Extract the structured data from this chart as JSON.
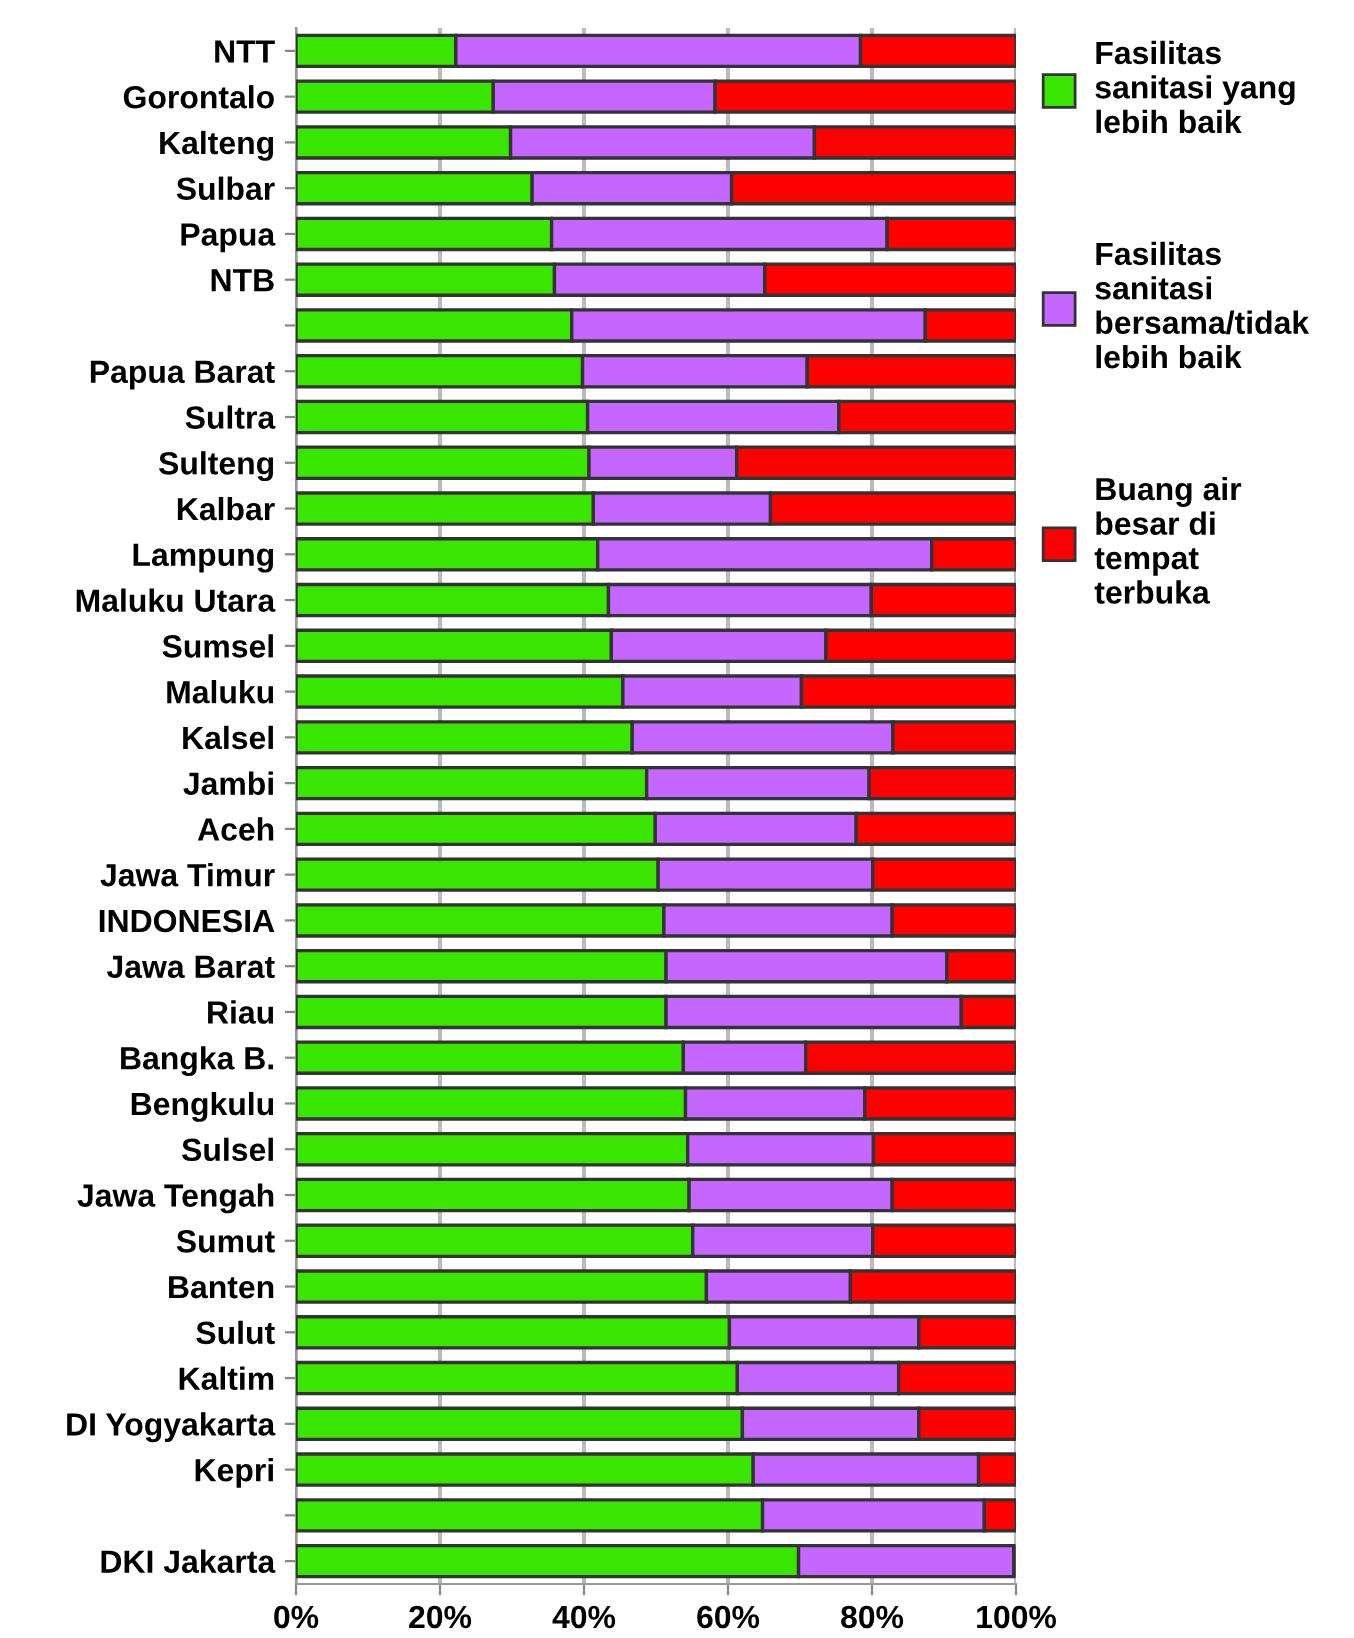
{
  "chart_data": {
    "type": "bar",
    "orientation": "horizontal",
    "stacked": true,
    "categories": [
      "NTT",
      "Gorontalo",
      "Kalteng",
      "Sulbar",
      "Papua",
      "NTB",
      null,
      "Papua Barat",
      "Sultra",
      "Sulteng",
      "Kalbar",
      "Lampung",
      "Maluku Utara",
      "Sumsel",
      "Maluku",
      "Kalsel",
      "Jambi",
      "Aceh",
      "Jawa Timur",
      "INDONESIA",
      "Jawa Barat",
      "Riau",
      "Bangka B.",
      "Bengkulu",
      "Sulsel",
      "Jawa Tengah",
      "Sumut",
      "Banten",
      "Sulut",
      "Kaltim",
      "DI Yogyakarta",
      "Kepri",
      null,
      "DKI Jakarta"
    ],
    "series": [
      {
        "name": "Fasilitas\nsanitasi yang\nlebih baik",
        "color": "#39e600",
        "values": [
          22.2,
          27.4,
          29.8,
          32.8,
          35.5,
          35.9,
          38.3,
          39.8,
          40.5,
          40.7,
          41.3,
          41.9,
          43.4,
          43.8,
          45.4,
          46.7,
          48.7,
          49.9,
          50.3,
          51.1,
          51.4,
          51.4,
          53.8,
          54.1,
          54.4,
          54.6,
          55.1,
          57.0,
          60.2,
          61.3,
          62.0,
          63.5,
          64.8,
          69.8
        ]
      },
      {
        "name": "Fasilitas\nsanitasi\nbersama/tidak\nlebih baik",
        "color": "#c466ff",
        "values": [
          56.2,
          30.8,
          42.2,
          27.7,
          46.6,
          29.2,
          49.1,
          31.2,
          34.9,
          20.5,
          24.6,
          46.4,
          36.5,
          29.8,
          24.8,
          36.2,
          30.9,
          27.9,
          29.8,
          31.7,
          39.0,
          41.0,
          17.0,
          24.9,
          25.8,
          28.2,
          25.0,
          20.0,
          26.3,
          22.4,
          24.5,
          31.3,
          30.8,
          29.9
        ]
      },
      {
        "name": "Buang air\nbesar di\ntempat\nterbuka",
        "color": "#ff0000",
        "values": [
          21.6,
          41.8,
          28.0,
          39.5,
          17.9,
          34.9,
          12.6,
          29.0,
          24.6,
          38.8,
          34.1,
          11.7,
          20.1,
          26.4,
          29.8,
          17.1,
          20.4,
          22.2,
          19.9,
          17.2,
          9.6,
          7.6,
          29.2,
          21.0,
          19.8,
          17.2,
          19.9,
          23.0,
          13.5,
          16.3,
          13.5,
          5.2,
          4.4,
          null
        ]
      }
    ],
    "xlim": [
      0,
      100
    ],
    "xticks": [
      {
        "value": 0,
        "label": "0%"
      },
      {
        "value": 20,
        "label": "20%"
      },
      {
        "value": 40,
        "label": "40%"
      },
      {
        "value": 60,
        "label": "60%"
      },
      {
        "value": 80,
        "label": "80%"
      },
      {
        "value": 100,
        "label": "100%"
      }
    ],
    "grid": "x",
    "legend": "right"
  }
}
